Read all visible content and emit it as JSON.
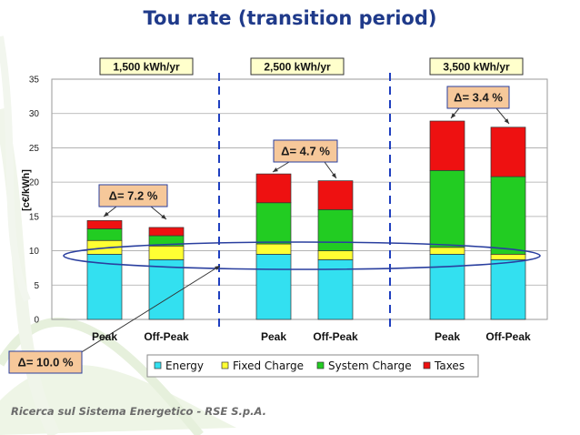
{
  "title": "Tou rate (transition period)",
  "footer": "Ricerca sul Sistema Energetico - RSE S.p.A.",
  "colors": {
    "energy": "#33e0f0",
    "fixed": "#ffff33",
    "system": "#22cc22",
    "taxes": "#ee1111",
    "accent_blue": "#1f3fbf",
    "title": "#1f3a8a",
    "annotation_fill": "#f6c89a"
  },
  "chart_data": {
    "type": "bar",
    "stacked": true,
    "ylabel": "[c€/kWh]",
    "ylim": [
      0,
      35
    ],
    "yticks": [
      0,
      5,
      10,
      15,
      20,
      25,
      30,
      35
    ],
    "grid": true,
    "legend_position": "bottom",
    "categories": [
      "Peak",
      "Off-Peak",
      "Peak",
      "Off-Peak",
      "Peak",
      "Off-Peak"
    ],
    "groups": [
      "1,500 kWh/yr",
      "2,500 kWh/yr",
      "3,500 kWh/yr"
    ],
    "series": [
      {
        "name": "Energy",
        "values": [
          9.5,
          8.7,
          9.5,
          8.7,
          9.5,
          8.7
        ]
      },
      {
        "name": "Fixed Charge",
        "values": [
          2.0,
          2.0,
          1.5,
          1.3,
          1.0,
          0.8
        ]
      },
      {
        "name": "System Charge",
        "values": [
          1.7,
          1.5,
          6.0,
          6.0,
          11.2,
          11.3
        ]
      },
      {
        "name": "Taxes",
        "values": [
          1.2,
          1.2,
          4.2,
          4.2,
          7.2,
          7.2
        ]
      }
    ],
    "annotations": [
      "Δ= 7.2 %",
      "Δ= 4.7 %",
      "Δ= 3.4 %",
      "Δ= 10.0 %"
    ]
  }
}
